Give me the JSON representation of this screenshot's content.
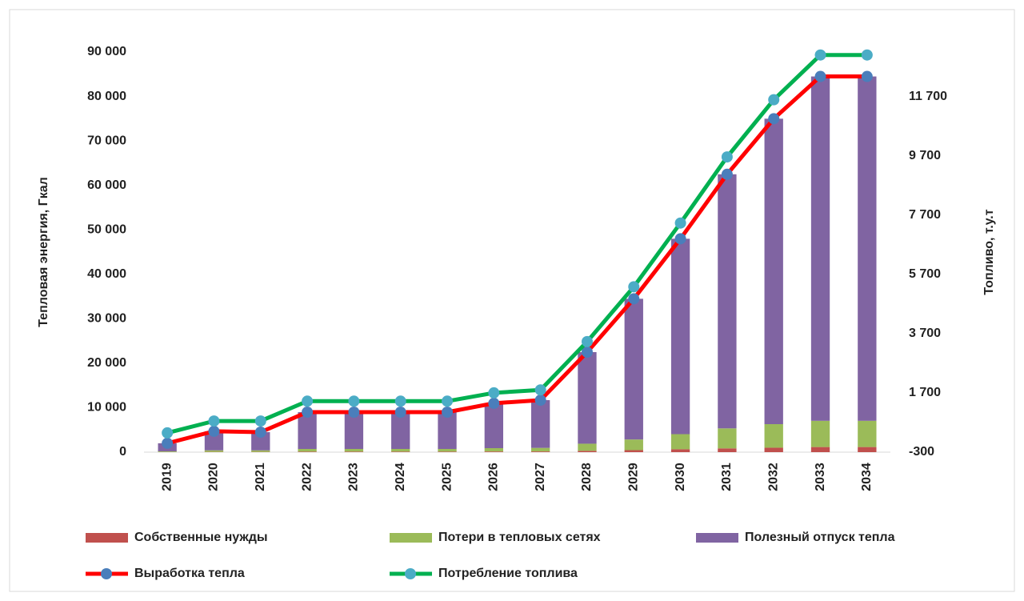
{
  "chart_data": {
    "type": "combo",
    "y_label": "Тепловая энергия, Гкал",
    "y2_label": "Топливо, т.у.т",
    "categories": [
      "2019",
      "2020",
      "2021",
      "2022",
      "2023",
      "2024",
      "2025",
      "2026",
      "2027",
      "2028",
      "2029",
      "2030",
      "2031",
      "2032",
      "2033",
      "2034"
    ],
    "ylim": [
      0,
      90000
    ],
    "yticks": [
      0,
      {
        "value": 10000,
        "label": "10 000"
      },
      {
        "value": 20000,
        "label": "20 000"
      },
      {
        "value": 30000,
        "label": "30 000"
      },
      {
        "value": 40000,
        "label": "40 000"
      },
      {
        "value": 50000,
        "label": "50 000"
      },
      {
        "value": 60000,
        "label": "60 000"
      },
      {
        "value": 70000,
        "label": "70 000"
      },
      {
        "value": 80000,
        "label": "80 000"
      },
      {
        "value": 90000,
        "label": "90 000"
      }
    ],
    "y2lim": [
      -300,
      13200
    ],
    "y2ticks": [
      -300,
      {
        "value": 1700,
        "label": "1 700"
      },
      {
        "value": 3700,
        "label": "3 700"
      },
      {
        "value": 5700,
        "label": "5 700"
      },
      {
        "value": 7700,
        "label": "7 700"
      },
      {
        "value": 9700,
        "label": "9 700"
      },
      {
        "value": 11700,
        "label": "11 700"
      }
    ],
    "series": [
      {
        "name": "Собственные нужды",
        "type": "bar",
        "color": "#c0504d",
        "values": [
          30,
          60,
          60,
          120,
          120,
          120,
          120,
          150,
          160,
          300,
          450,
          650,
          850,
          1000,
          1150,
          1150
        ]
      },
      {
        "name": "Потери в тепловых сетях",
        "type": "bar",
        "color": "#9bbb59",
        "values": [
          150,
          350,
          340,
          600,
          600,
          600,
          600,
          750,
          800,
          1600,
          2400,
          3400,
          4500,
          5300,
          5900,
          5900
        ]
      },
      {
        "name": "Полезный отпуск тепла",
        "type": "bar",
        "color": "#8064a2",
        "values": [
          1820,
          4290,
          4100,
          8280,
          8280,
          8280,
          8280,
          10100,
          10740,
          20600,
          31650,
          43950,
          57150,
          68700,
          77450,
          77450
        ]
      },
      {
        "name": "Выработка тепла",
        "type": "line",
        "color": "#ff0000",
        "marker_color": "#4a7ebb",
        "values": [
          2000,
          4700,
          4500,
          9000,
          9000,
          9000,
          9000,
          11000,
          11700,
          22500,
          34500,
          48000,
          62500,
          75000,
          84500,
          84500
        ]
      },
      {
        "name": "Потребление топлива",
        "type": "line",
        "axis": "y2",
        "color": "#00b050",
        "marker_color": "#4bacc6",
        "values": [
          350,
          750,
          750,
          1420,
          1420,
          1420,
          1420,
          1700,
          1800,
          3430,
          5280,
          7430,
          9660,
          11590,
          13100,
          13100
        ]
      }
    ]
  }
}
